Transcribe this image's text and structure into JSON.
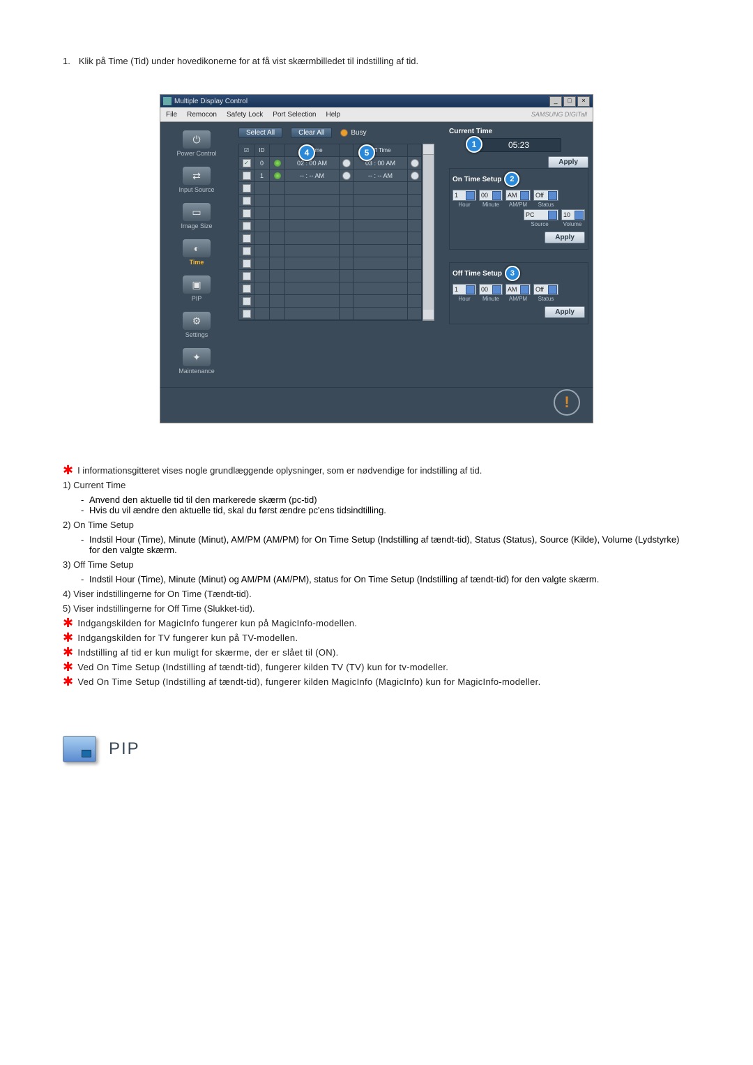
{
  "intro": {
    "num": "1.",
    "text": "Klik på Time (Tid) under hovedikonerne for at få vist skærmbilledet til indstilling af tid."
  },
  "window": {
    "title": "Multiple Display Control",
    "menubar": [
      "File",
      "Remocon",
      "Safety Lock",
      "Port Selection",
      "Help"
    ],
    "brand": "SAMSUNG DIGITall",
    "sidebar": [
      {
        "label": "Power Control",
        "glyph": "⏻"
      },
      {
        "label": "Input Source",
        "glyph": "⇄"
      },
      {
        "label": "Image Size",
        "glyph": "▭"
      },
      {
        "label": "Time",
        "glyph": "◐",
        "active": true
      },
      {
        "label": "PIP",
        "glyph": "▣"
      },
      {
        "label": "Settings",
        "glyph": "⚙"
      },
      {
        "label": "Maintenance",
        "glyph": "✦"
      }
    ],
    "actions": {
      "select_all": "Select All",
      "clear_all": "Clear All",
      "busy": "Busy"
    },
    "grid": {
      "headers": {
        "chk": "☑",
        "id": "ID",
        "st": "",
        "on": "On Time",
        "off": "Off Time",
        "sel": ""
      },
      "rows": [
        {
          "chk": true,
          "id": "0",
          "led": "green",
          "on": "02 : 00  AM",
          "offled": "gray",
          "off": "03 : 00  AM",
          "sel": "gray"
        },
        {
          "chk": false,
          "id": "1",
          "led": "green",
          "on": "-- : --  AM",
          "offled": "gray",
          "off": "-- : --  AM",
          "sel": "gray"
        }
      ],
      "blank_rows": 11
    },
    "badges": {
      "b1": "1",
      "b2": "2",
      "b3": "3",
      "b4": "4",
      "b5": "5"
    },
    "right": {
      "current_time_label": "Current Time",
      "current_time_value": "05:23",
      "apply": "Apply",
      "on_setup": {
        "title": "On Time Setup",
        "hour": "1",
        "min": "00",
        "ampm": "AM",
        "status": "Off",
        "source": "PC",
        "volume": "10",
        "lbls": {
          "hour": "Hour",
          "min": "Minute",
          "ampm": "AM/PM",
          "status": "Status",
          "source": "Source",
          "volume": "Volume"
        }
      },
      "off_setup": {
        "title": "Off Time Setup",
        "hour": "1",
        "min": "00",
        "ampm": "AM",
        "status": "Off",
        "lbls": {
          "hour": "Hour",
          "min": "Minute",
          "ampm": "AM/PM",
          "status": "Status"
        }
      }
    }
  },
  "notes": {
    "star1": "I informationsgitteret vises nogle grundlæggende oplysninger, som er nødvendige for indstilling af tid.",
    "items": [
      {
        "num": "1)",
        "title": "Current Time",
        "subs": [
          "Anvend den aktuelle tid til den markerede skærm (pc-tid)",
          "Hvis du vil ændre den aktuelle tid, skal du først ændre pc'ens tidsindtilling."
        ]
      },
      {
        "num": "2)",
        "title": "On Time Setup",
        "subs": [
          "Indstil Hour (Time), Minute (Minut), AM/PM (AM/PM) for On Time Setup (Indstilling af tændt-tid), Status (Status), Source (Kilde), Volume (Lydstyrke) for den valgte skærm."
        ]
      },
      {
        "num": "3)",
        "title": "Off Time Setup",
        "subs": [
          "Indstil Hour (Time), Minute (Minut) og AM/PM (AM/PM), status for On Time Setup (Indstilling af tændt-tid) for den valgte skærm."
        ]
      },
      {
        "num": "4)",
        "title": "Viser indstillingerne for On Time (Tændt-tid).",
        "subs": []
      },
      {
        "num": "5)",
        "title": "Viser indstillingerne for Off Time (Slukket-tid).",
        "subs": []
      }
    ],
    "star2": "Indgangskilden for MagicInfo fungerer kun på MagicInfo-modellen.",
    "star3": "Indgangskilden for TV fungerer kun på TV-modellen.",
    "star4": "Indstilling af tid er kun muligt for skærme, der er slået til (ON).",
    "star5": "Ved On Time Setup (Indstilling af tændt-tid), fungerer kilden TV (TV) kun for tv-modeller.",
    "star6": "Ved On Time Setup (Indstilling af tændt-tid), fungerer kilden MagicInfo (MagicInfo) kun for MagicInfo-modeller."
  },
  "pip": {
    "title": "PIP"
  }
}
